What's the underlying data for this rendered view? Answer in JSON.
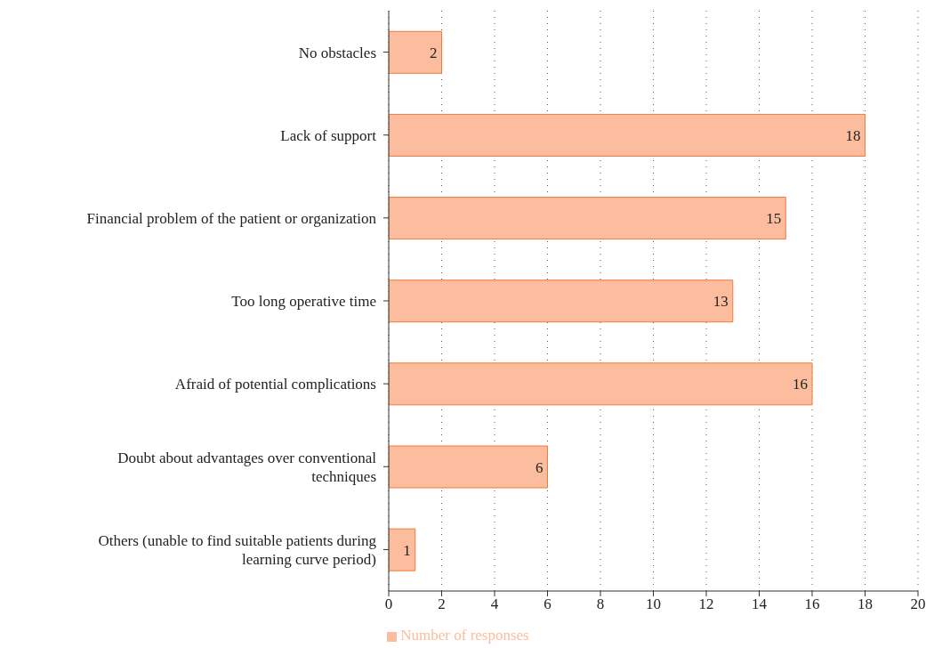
{
  "chart_data": {
    "type": "bar",
    "orientation": "horizontal",
    "categories": [
      "No obstacles",
      "Lack of support",
      "Financial problem of the patient or organization",
      "Too long operative time",
      "Afraid of potential complications",
      "Doubt about advantages over conventional techniques",
      "Others (unable to find suitable patients during learning curve period)"
    ],
    "series": [
      {
        "name": "Number of responses",
        "color": "#fbbd9d",
        "values": [
          2,
          18,
          15,
          13,
          16,
          6,
          1
        ]
      }
    ],
    "xlim": [
      0,
      20
    ],
    "xticks": [
      0,
      2,
      4,
      6,
      8,
      10,
      12,
      14,
      16,
      18,
      20
    ],
    "grid": "x",
    "legend": "bottom",
    "data_labels": true
  }
}
